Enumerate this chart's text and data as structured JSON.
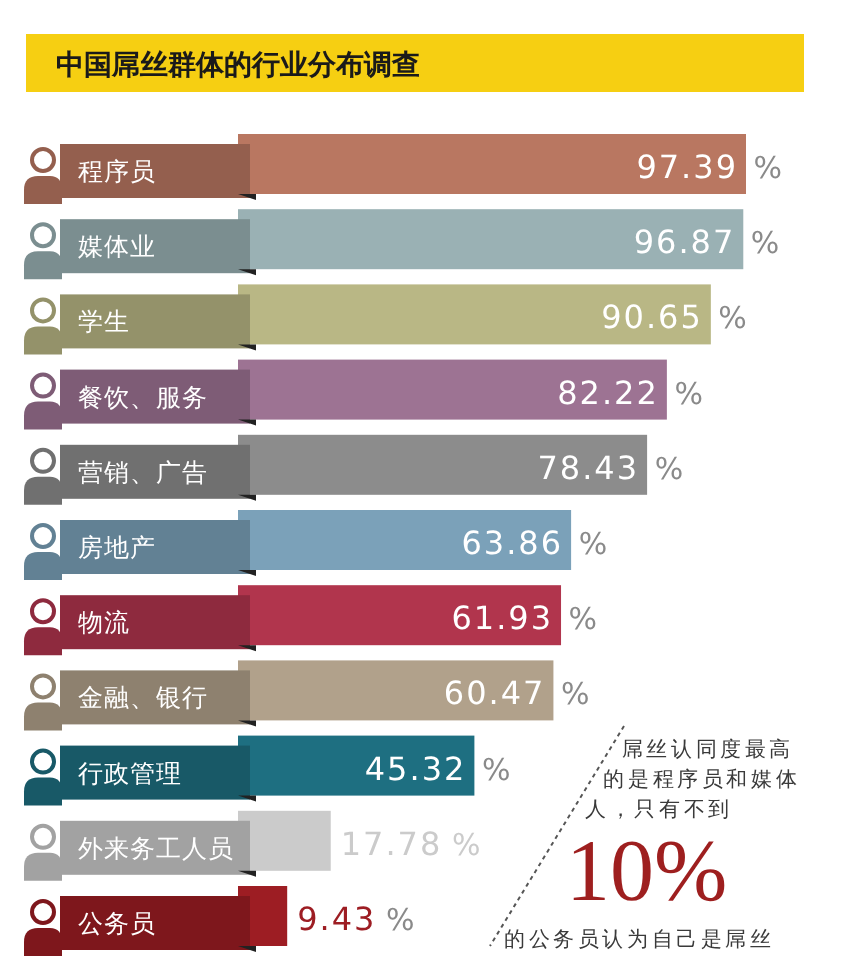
{
  "chart_data": {
    "type": "bar",
    "orientation": "horizontal",
    "title": "中国屌丝群体的行业分布调查",
    "categories": [
      "程序员",
      "媒体业",
      "学生",
      "餐饮、服务",
      "营销、广告",
      "房地产",
      "物流",
      "金融、银行",
      "行政管理",
      "外来务工人员",
      "公务员"
    ],
    "values": [
      97.39,
      96.87,
      90.65,
      82.22,
      78.43,
      63.86,
      61.93,
      60.47,
      45.32,
      17.78,
      9.43
    ],
    "colors": [
      "#b97761",
      "#9ab1b4",
      "#b9b785",
      "#9d7393",
      "#8c8c8c",
      "#7ba1b9",
      "#b1354d",
      "#b1a18b",
      "#1e6f81",
      "#cbcbcb",
      "#9d1d23"
    ],
    "value_labels": [
      "97.39 %",
      "96.87 %",
      "90.65 %",
      "82.22 %",
      "78.43 %",
      "63.86 %",
      "61.93 %",
      "60.47 %",
      "45.32 %",
      "17.78 %",
      "9.43 %"
    ],
    "annotations": [
      "屌丝认同度最高的是程序员和媒体人，只有不到",
      "10%",
      "的公务员认为自己是屌丝"
    ]
  }
}
